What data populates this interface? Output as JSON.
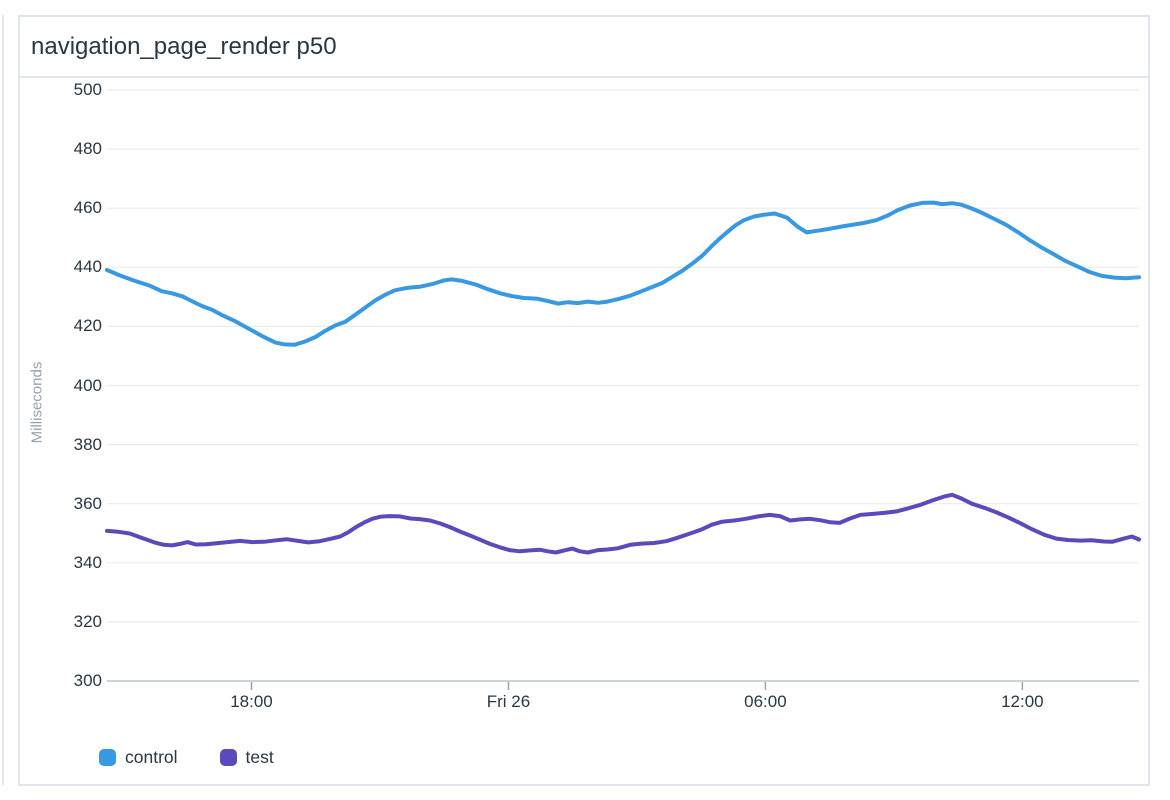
{
  "panel": {
    "title": "navigation_page_render p50"
  },
  "chart_data": {
    "type": "line",
    "title": "navigation_page_render p50",
    "xlabel": "",
    "ylabel": "Milliseconds",
    "ylim": [
      300,
      500
    ],
    "ytick_step": 20,
    "yticks": [
      500,
      480,
      460,
      440,
      420,
      400,
      380,
      360,
      340,
      320,
      300
    ],
    "xticks": [
      {
        "label": "18:00",
        "pos": 0.14
      },
      {
        "label": "Fri 26",
        "pos": 0.389
      },
      {
        "label": "06:00",
        "pos": 0.638
      },
      {
        "label": "12:00",
        "pos": 0.887
      }
    ],
    "grid": "horizontal",
    "legend_position": "bottom-left",
    "colors": {
      "control": "#3998e2",
      "test": "#5b4abc",
      "gridline": "#e9ebef",
      "axis_line": "#cdd3db",
      "tick_mark": "#9aa3b0",
      "tick_label": "#2a3642",
      "axis_title": "#98a2ab",
      "panel_border": "#e0e4ef"
    },
    "series": [
      {
        "name": "control",
        "color": "#3998e2",
        "points": [
          [
            0.0,
            439.1
          ],
          [
            0.013,
            437.2
          ],
          [
            0.027,
            435.4
          ],
          [
            0.042,
            433.7
          ],
          [
            0.053,
            431.9
          ],
          [
            0.063,
            431.2
          ],
          [
            0.073,
            430.2
          ],
          [
            0.082,
            428.6
          ],
          [
            0.092,
            426.9
          ],
          [
            0.102,
            425.6
          ],
          [
            0.111,
            423.9
          ],
          [
            0.124,
            421.8
          ],
          [
            0.137,
            419.3
          ],
          [
            0.15,
            416.8
          ],
          [
            0.163,
            414.6
          ],
          [
            0.172,
            413.9
          ],
          [
            0.182,
            413.8
          ],
          [
            0.192,
            414.9
          ],
          [
            0.202,
            416.4
          ],
          [
            0.211,
            418.4
          ],
          [
            0.221,
            420.3
          ],
          [
            0.231,
            421.6
          ],
          [
            0.24,
            423.8
          ],
          [
            0.25,
            426.3
          ],
          [
            0.26,
            428.8
          ],
          [
            0.269,
            430.6
          ],
          [
            0.279,
            432.2
          ],
          [
            0.292,
            433.1
          ],
          [
            0.303,
            433.4
          ],
          [
            0.315,
            434.3
          ],
          [
            0.327,
            435.6
          ],
          [
            0.334,
            435.9
          ],
          [
            0.344,
            435.4
          ],
          [
            0.357,
            434.2
          ],
          [
            0.369,
            432.6
          ],
          [
            0.381,
            431.2
          ],
          [
            0.392,
            430.3
          ],
          [
            0.404,
            429.6
          ],
          [
            0.416,
            429.4
          ],
          [
            0.427,
            428.6
          ],
          [
            0.437,
            427.7
          ],
          [
            0.447,
            428.2
          ],
          [
            0.456,
            427.9
          ],
          [
            0.466,
            428.4
          ],
          [
            0.476,
            428.0
          ],
          [
            0.485,
            428.4
          ],
          [
            0.495,
            429.2
          ],
          [
            0.507,
            430.4
          ],
          [
            0.518,
            431.9
          ],
          [
            0.528,
            433.3
          ],
          [
            0.538,
            434.7
          ],
          [
            0.547,
            436.6
          ],
          [
            0.557,
            438.7
          ],
          [
            0.567,
            441.2
          ],
          [
            0.577,
            444.0
          ],
          [
            0.586,
            447.2
          ],
          [
            0.594,
            449.8
          ],
          [
            0.602,
            452.2
          ],
          [
            0.609,
            454.2
          ],
          [
            0.617,
            455.9
          ],
          [
            0.627,
            457.2
          ],
          [
            0.637,
            457.8
          ],
          [
            0.647,
            458.2
          ],
          [
            0.659,
            456.8
          ],
          [
            0.669,
            453.8
          ],
          [
            0.678,
            451.8
          ],
          [
            0.689,
            452.4
          ],
          [
            0.701,
            453.1
          ],
          [
            0.712,
            453.8
          ],
          [
            0.724,
            454.5
          ],
          [
            0.733,
            455.0
          ],
          [
            0.745,
            455.9
          ],
          [
            0.757,
            457.6
          ],
          [
            0.766,
            459.3
          ],
          [
            0.778,
            460.9
          ],
          [
            0.79,
            461.8
          ],
          [
            0.801,
            461.9
          ],
          [
            0.809,
            461.4
          ],
          [
            0.819,
            461.7
          ],
          [
            0.828,
            461.2
          ],
          [
            0.838,
            459.9
          ],
          [
            0.848,
            458.4
          ],
          [
            0.859,
            456.5
          ],
          [
            0.871,
            454.4
          ],
          [
            0.883,
            451.8
          ],
          [
            0.894,
            449.2
          ],
          [
            0.906,
            446.6
          ],
          [
            0.918,
            444.3
          ],
          [
            0.929,
            442.1
          ],
          [
            0.941,
            440.2
          ],
          [
            0.952,
            438.4
          ],
          [
            0.964,
            437.1
          ],
          [
            0.976,
            436.5
          ],
          [
            0.987,
            436.3
          ],
          [
            1.0,
            436.6
          ]
        ]
      },
      {
        "name": "test",
        "color": "#5b4abc",
        "points": [
          [
            0.0,
            350.8
          ],
          [
            0.011,
            350.5
          ],
          [
            0.022,
            349.9
          ],
          [
            0.034,
            348.4
          ],
          [
            0.046,
            346.9
          ],
          [
            0.055,
            346.1
          ],
          [
            0.063,
            345.9
          ],
          [
            0.071,
            346.4
          ],
          [
            0.078,
            347.0
          ],
          [
            0.086,
            346.2
          ],
          [
            0.096,
            346.3
          ],
          [
            0.106,
            346.6
          ],
          [
            0.117,
            347.0
          ],
          [
            0.129,
            347.4
          ],
          [
            0.141,
            347.0
          ],
          [
            0.152,
            347.1
          ],
          [
            0.164,
            347.6
          ],
          [
            0.174,
            348.0
          ],
          [
            0.185,
            347.4
          ],
          [
            0.195,
            346.9
          ],
          [
            0.206,
            347.3
          ],
          [
            0.216,
            348.1
          ],
          [
            0.226,
            348.9
          ],
          [
            0.234,
            350.4
          ],
          [
            0.241,
            352.0
          ],
          [
            0.249,
            353.6
          ],
          [
            0.257,
            354.9
          ],
          [
            0.265,
            355.6
          ],
          [
            0.274,
            355.8
          ],
          [
            0.284,
            355.7
          ],
          [
            0.294,
            355.0
          ],
          [
            0.303,
            354.8
          ],
          [
            0.313,
            354.3
          ],
          [
            0.323,
            353.3
          ],
          [
            0.332,
            352.1
          ],
          [
            0.342,
            350.6
          ],
          [
            0.352,
            349.2
          ],
          [
            0.361,
            347.9
          ],
          [
            0.371,
            346.4
          ],
          [
            0.381,
            345.2
          ],
          [
            0.39,
            344.3
          ],
          [
            0.4,
            343.9
          ],
          [
            0.41,
            344.2
          ],
          [
            0.42,
            344.4
          ],
          [
            0.427,
            343.9
          ],
          [
            0.435,
            343.5
          ],
          [
            0.443,
            344.2
          ],
          [
            0.451,
            344.8
          ],
          [
            0.458,
            343.9
          ],
          [
            0.466,
            343.5
          ],
          [
            0.476,
            344.3
          ],
          [
            0.485,
            344.5
          ],
          [
            0.495,
            344.9
          ],
          [
            0.507,
            346.1
          ],
          [
            0.518,
            346.5
          ],
          [
            0.53,
            346.7
          ],
          [
            0.542,
            347.3
          ],
          [
            0.553,
            348.5
          ],
          [
            0.565,
            349.9
          ],
          [
            0.577,
            351.4
          ],
          [
            0.586,
            352.9
          ],
          [
            0.596,
            353.9
          ],
          [
            0.608,
            354.3
          ],
          [
            0.619,
            354.9
          ],
          [
            0.631,
            355.7
          ],
          [
            0.642,
            356.2
          ],
          [
            0.652,
            355.8
          ],
          [
            0.662,
            354.3
          ],
          [
            0.672,
            354.7
          ],
          [
            0.681,
            354.9
          ],
          [
            0.691,
            354.4
          ],
          [
            0.701,
            353.7
          ],
          [
            0.71,
            353.5
          ],
          [
            0.72,
            355.0
          ],
          [
            0.73,
            356.2
          ],
          [
            0.741,
            356.5
          ],
          [
            0.753,
            356.9
          ],
          [
            0.765,
            357.4
          ],
          [
            0.776,
            358.4
          ],
          [
            0.788,
            359.6
          ],
          [
            0.799,
            361.0
          ],
          [
            0.811,
            362.4
          ],
          [
            0.819,
            363.0
          ],
          [
            0.827,
            361.9
          ],
          [
            0.838,
            360.0
          ],
          [
            0.85,
            358.6
          ],
          [
            0.861,
            357.2
          ],
          [
            0.873,
            355.4
          ],
          [
            0.885,
            353.4
          ],
          [
            0.896,
            351.4
          ],
          [
            0.908,
            349.5
          ],
          [
            0.92,
            348.2
          ],
          [
            0.931,
            347.7
          ],
          [
            0.943,
            347.5
          ],
          [
            0.954,
            347.6
          ],
          [
            0.966,
            347.2
          ],
          [
            0.974,
            347.1
          ],
          [
            0.983,
            348.0
          ],
          [
            0.993,
            348.9
          ],
          [
            1.0,
            347.9
          ]
        ]
      }
    ]
  }
}
